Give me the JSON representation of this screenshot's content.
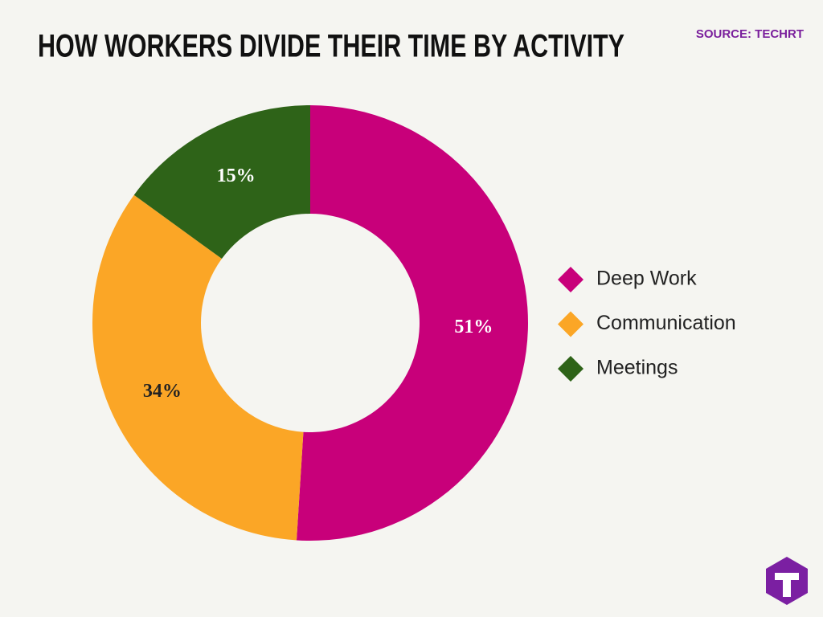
{
  "chart_data": {
    "type": "donut",
    "title": "HOW WORKERS DIVIDE THEIR TIME BY ACTIVITY",
    "source": "SOURCE: TECHRT",
    "categories": [
      "Deep Work",
      "Communication",
      "Meetings"
    ],
    "values": [
      51,
      34,
      15
    ],
    "value_labels": [
      "51%",
      "34%",
      "15%"
    ],
    "colors": [
      "#c8007a",
      "#fba626",
      "#2e6318"
    ],
    "legend": "right"
  }
}
